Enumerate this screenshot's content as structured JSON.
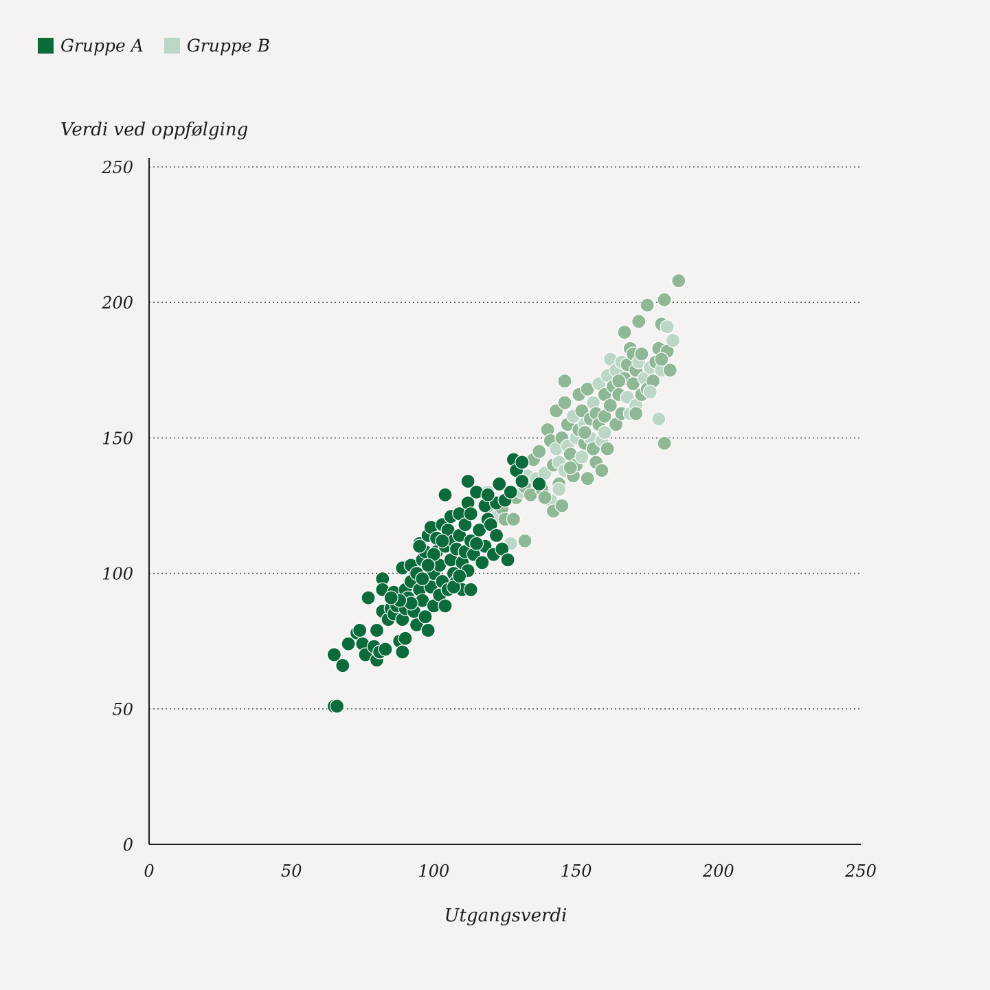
{
  "legend": {
    "items": [
      {
        "label": "Gruppe A",
        "color": "#0b6b3a"
      },
      {
        "label": "Gruppe B",
        "color": "#bdd7c6"
      }
    ]
  },
  "colors": {
    "group_a": "#0b6b3a",
    "group_b": "#8fb996",
    "group_b_light": "#bdd7c6",
    "grid": "#555555",
    "axis": "#1c1c1c"
  },
  "chart_data": {
    "type": "scatter",
    "xlabel": "Utgangsverdi",
    "ylabel": "Verdi ved oppfølging",
    "xlim": [
      0,
      250
    ],
    "ylim": [
      0,
      250
    ],
    "xticks": [
      0,
      50,
      100,
      150,
      200,
      250
    ],
    "yticks": [
      0,
      50,
      100,
      150,
      200,
      250
    ],
    "grid": "horizontal-dotted",
    "legend_position": "top-left",
    "series": [
      {
        "name": "Gruppe A",
        "points": [
          [
            65,
            51
          ],
          [
            66,
            51
          ],
          [
            65,
            70
          ],
          [
            68,
            66
          ],
          [
            70,
            74
          ],
          [
            73,
            78
          ],
          [
            74,
            79
          ],
          [
            75,
            74
          ],
          [
            76,
            70
          ],
          [
            77,
            91
          ],
          [
            79,
            73
          ],
          [
            80,
            68
          ],
          [
            80,
            79
          ],
          [
            81,
            71
          ],
          [
            82,
            86
          ],
          [
            82,
            98
          ],
          [
            82,
            94
          ],
          [
            83,
            72
          ],
          [
            84,
            83
          ],
          [
            85,
            87
          ],
          [
            86,
            85
          ],
          [
            86,
            93
          ],
          [
            87,
            88
          ],
          [
            88,
            75
          ],
          [
            89,
            83
          ],
          [
            89,
            102
          ],
          [
            89,
            71
          ],
          [
            90,
            76
          ],
          [
            90,
            87
          ],
          [
            90,
            94
          ],
          [
            91,
            91
          ],
          [
            92,
            97
          ],
          [
            92,
            103
          ],
          [
            93,
            86
          ],
          [
            94,
            100
          ],
          [
            94,
            81
          ],
          [
            95,
            111
          ],
          [
            95,
            94
          ],
          [
            96,
            105
          ],
          [
            96,
            90
          ],
          [
            97,
            84
          ],
          [
            97,
            108
          ],
          [
            98,
            114
          ],
          [
            98,
            79
          ],
          [
            99,
            95
          ],
          [
            99,
            117
          ],
          [
            100,
            88
          ],
          [
            100,
            100
          ],
          [
            101,
            108
          ],
          [
            101,
            113
          ],
          [
            102,
            92
          ],
          [
            102,
            103
          ],
          [
            103,
            97
          ],
          [
            103,
            118
          ],
          [
            104,
            88
          ],
          [
            104,
            110
          ],
          [
            104,
            129
          ],
          [
            105,
            94
          ],
          [
            105,
            116
          ],
          [
            106,
            105
          ],
          [
            106,
            121
          ],
          [
            107,
            112
          ],
          [
            107,
            100
          ],
          [
            108,
            97
          ],
          [
            108,
            109
          ],
          [
            109,
            122
          ],
          [
            109,
            114
          ],
          [
            110,
            104
          ],
          [
            110,
            94
          ],
          [
            111,
            118
          ],
          [
            111,
            108
          ],
          [
            112,
            101
          ],
          [
            112,
            126
          ],
          [
            112,
            134
          ],
          [
            113,
            112
          ],
          [
            113,
            122
          ],
          [
            114,
            107
          ],
          [
            115,
            130
          ],
          [
            116,
            116
          ],
          [
            117,
            104
          ],
          [
            118,
            125
          ],
          [
            118,
            110
          ],
          [
            119,
            120
          ],
          [
            120,
            118
          ],
          [
            121,
            107
          ],
          [
            122,
            126
          ],
          [
            122,
            114
          ],
          [
            123,
            133
          ],
          [
            124,
            109
          ],
          [
            125,
            127
          ],
          [
            126,
            105
          ],
          [
            127,
            130
          ],
          [
            128,
            142
          ],
          [
            129,
            138
          ],
          [
            131,
            141
          ],
          [
            131,
            134
          ],
          [
            137,
            133
          ],
          [
            95,
            110
          ],
          [
            100,
            107
          ],
          [
            92,
            89
          ],
          [
            88,
            90
          ],
          [
            103,
            112
          ],
          [
            107,
            95
          ],
          [
            96,
            98
          ],
          [
            98,
            103
          ],
          [
            113,
            94
          ],
          [
            115,
            111
          ],
          [
            119,
            129
          ],
          [
            109,
            99
          ],
          [
            85,
            91
          ]
        ]
      },
      {
        "name": "Gruppe B",
        "points": [
          [
            119,
            130
          ],
          [
            120,
            127
          ],
          [
            121,
            122
          ],
          [
            122,
            121
          ],
          [
            124,
            124
          ],
          [
            125,
            120
          ],
          [
            127,
            111
          ],
          [
            128,
            120
          ],
          [
            129,
            128
          ],
          [
            131,
            130
          ],
          [
            132,
            112
          ],
          [
            132,
            132
          ],
          [
            133,
            136
          ],
          [
            134,
            129
          ],
          [
            135,
            142
          ],
          [
            136,
            135
          ],
          [
            137,
            145
          ],
          [
            138,
            131
          ],
          [
            139,
            137
          ],
          [
            140,
            153
          ],
          [
            141,
            149
          ],
          [
            141,
            127
          ],
          [
            142,
            123
          ],
          [
            142,
            140
          ],
          [
            143,
            146
          ],
          [
            143,
            160
          ],
          [
            144,
            133
          ],
          [
            144,
            141
          ],
          [
            145,
            150
          ],
          [
            145,
            125
          ],
          [
            146,
            138
          ],
          [
            146,
            163
          ],
          [
            146,
            171
          ],
          [
            147,
            147
          ],
          [
            147,
            155
          ],
          [
            148,
            144
          ],
          [
            149,
            158
          ],
          [
            149,
            136
          ],
          [
            150,
            140
          ],
          [
            150,
            150
          ],
          [
            151,
            153
          ],
          [
            151,
            166
          ],
          [
            152,
            143
          ],
          [
            152,
            160
          ],
          [
            153,
            148
          ],
          [
            153,
            155
          ],
          [
            154,
            168
          ],
          [
            154,
            135
          ],
          [
            155,
            150
          ],
          [
            155,
            157
          ],
          [
            156,
            146
          ],
          [
            156,
            163
          ],
          [
            157,
            141
          ],
          [
            157,
            159
          ],
          [
            158,
            170
          ],
          [
            158,
            155
          ],
          [
            159,
            138
          ],
          [
            159,
            149
          ],
          [
            160,
            166
          ],
          [
            160,
            158
          ],
          [
            161,
            173
          ],
          [
            161,
            146
          ],
          [
            162,
            162
          ],
          [
            162,
            179
          ],
          [
            163,
            169
          ],
          [
            164,
            155
          ],
          [
            164,
            175
          ],
          [
            165,
            166
          ],
          [
            166,
            159
          ],
          [
            166,
            178
          ],
          [
            167,
            172
          ],
          [
            167,
            189
          ],
          [
            168,
            165
          ],
          [
            168,
            177
          ],
          [
            169,
            183
          ],
          [
            169,
            159
          ],
          [
            170,
            170
          ],
          [
            170,
            181
          ],
          [
            171,
            162
          ],
          [
            171,
            175
          ],
          [
            172,
            193
          ],
          [
            172,
            178
          ],
          [
            173,
            166
          ],
          [
            173,
            181
          ],
          [
            174,
            172
          ],
          [
            175,
            199
          ],
          [
            175,
            168
          ],
          [
            176,
            176
          ],
          [
            177,
            171
          ],
          [
            178,
            178
          ],
          [
            179,
            157
          ],
          [
            179,
            183
          ],
          [
            180,
            192
          ],
          [
            180,
            175
          ],
          [
            181,
            201
          ],
          [
            181,
            148
          ],
          [
            182,
            191
          ],
          [
            182,
            182
          ],
          [
            183,
            175
          ],
          [
            184,
            186
          ],
          [
            186,
            208
          ],
          [
            139,
            128
          ],
          [
            144,
            131
          ],
          [
            148,
            139
          ],
          [
            153,
            152
          ],
          [
            160,
            152
          ],
          [
            165,
            171
          ],
          [
            171,
            159
          ],
          [
            176,
            167
          ],
          [
            180,
            179
          ]
        ]
      }
    ]
  }
}
